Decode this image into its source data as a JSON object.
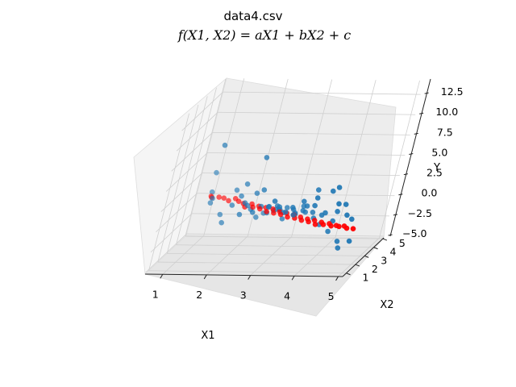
{
  "chart_data": {
    "type": "scatter",
    "projection": "3d",
    "title": "data4.csv",
    "subtitle": "f(X1, X2) = aX1 + bX2 + c",
    "xlabel": "X1",
    "ylabel": "X2",
    "zlabel": "Y",
    "xlim": [
      0.6,
      5.1
    ],
    "ylim": [
      0.6,
      5.1
    ],
    "zlim": [
      -5.2,
      14.2
    ],
    "xticks": [
      "1",
      "2",
      "3",
      "4",
      "5"
    ],
    "yticks": [
      "1",
      "2",
      "3",
      "4",
      "5"
    ],
    "zticks": [
      "−5.0",
      "−2.5",
      "0.0",
      "2.5",
      "5.0",
      "7.5",
      "10.0",
      "12.5"
    ],
    "grid": true,
    "series": [
      {
        "color": "#1f77b4",
        "points": [
          [
            1.0,
            4.6,
            3.1
          ],
          [
            1.0,
            4.7,
            0.6
          ],
          [
            1.1,
            4.2,
            -0.2
          ],
          [
            1.4,
            4.1,
            -1.5
          ],
          [
            1.5,
            4.0,
            -2.4
          ],
          [
            1.3,
            2.9,
            8.3
          ],
          [
            1.7,
            3.6,
            0.2
          ],
          [
            1.8,
            4.0,
            0.9
          ],
          [
            1.9,
            3.8,
            2.6
          ],
          [
            2.0,
            3.5,
            0.6
          ],
          [
            2.0,
            3.1,
            -0.4
          ],
          [
            2.1,
            3.3,
            0.5
          ],
          [
            2.2,
            3.6,
            1.7
          ],
          [
            2.3,
            3.0,
            0.0
          ],
          [
            2.4,
            3.4,
            0.3
          ],
          [
            2.5,
            3.8,
            -0.9
          ],
          [
            2.6,
            3.3,
            0.4
          ],
          [
            2.2,
            4.3,
            -2.0
          ],
          [
            2.3,
            4.6,
            -1.8
          ],
          [
            2.5,
            4.7,
            -1.6
          ],
          [
            2.6,
            4.4,
            -1.1
          ],
          [
            2.7,
            4.2,
            -0.9
          ],
          [
            2.8,
            3.7,
            -0.4
          ],
          [
            2.4,
            2.4,
            7.4
          ],
          [
            2.5,
            2.6,
            3.2
          ],
          [
            2.8,
            3.2,
            0.6
          ],
          [
            2.9,
            2.9,
            0.8
          ],
          [
            3.0,
            3.4,
            0.2
          ],
          [
            3.0,
            3.0,
            0.0
          ],
          [
            3.1,
            2.7,
            0.4
          ],
          [
            3.2,
            3.1,
            0.3
          ],
          [
            3.2,
            3.5,
            -0.7
          ],
          [
            3.3,
            2.8,
            0.2
          ],
          [
            3.4,
            3.2,
            0.6
          ],
          [
            3.5,
            2.6,
            0.7
          ],
          [
            3.5,
            3.0,
            0.1
          ],
          [
            3.6,
            2.4,
            1.5
          ],
          [
            3.7,
            2.8,
            0.3
          ],
          [
            3.8,
            2.5,
            -0.1
          ],
          [
            3.8,
            2.2,
            3.7
          ],
          [
            3.4,
            2.0,
            0.8
          ],
          [
            3.9,
            2.9,
            -1.3
          ],
          [
            4.0,
            2.3,
            0.5
          ],
          [
            4.1,
            2.1,
            1.0
          ],
          [
            4.2,
            2.5,
            -1.7
          ],
          [
            4.2,
            1.8,
            4.0
          ],
          [
            4.3,
            2.2,
            -0.1
          ],
          [
            4.4,
            1.9,
            1.4
          ],
          [
            4.5,
            2.3,
            -2.7
          ],
          [
            4.6,
            1.6,
            2.6
          ],
          [
            4.6,
            2.0,
            -3.2
          ],
          [
            4.7,
            1.5,
            1.4
          ],
          [
            4.8,
            1.7,
            0.7
          ],
          [
            4.9,
            1.5,
            -1.8
          ],
          [
            3.0,
            1.4,
            3.1
          ],
          [
            4.4,
            1.3,
            5.0
          ],
          [
            4.0,
            1.1,
            3.9
          ],
          [
            3.6,
            1.8,
            2.7
          ],
          [
            3.3,
            2.3,
            1.4
          ],
          [
            2.9,
            3.7,
            -1.5
          ],
          [
            2.1,
            3.9,
            -0.6
          ],
          [
            1.6,
            4.4,
            1.2
          ],
          [
            1.2,
            3.7,
            0.9
          ],
          [
            4.5,
            1.2,
            3.1
          ],
          [
            3.9,
            1.6,
            2.4
          ],
          [
            2.7,
            2.6,
            1.1
          ]
        ]
      },
      {
        "color": "#ff0000",
        "points": [
          [
            1.0,
            4.7,
            0.1
          ],
          [
            1.05,
            4.5,
            0.15
          ],
          [
            1.2,
            4.6,
            0.1
          ],
          [
            1.35,
            4.4,
            0.2
          ],
          [
            1.5,
            4.2,
            0.1
          ],
          [
            1.6,
            4.5,
            0.05
          ],
          [
            1.75,
            4.1,
            0.15
          ],
          [
            1.9,
            3.9,
            0.1
          ],
          [
            2.0,
            3.6,
            0.0
          ],
          [
            2.1,
            3.9,
            0.05
          ],
          [
            2.2,
            3.5,
            0.1
          ],
          [
            2.3,
            3.7,
            0.0
          ],
          [
            2.4,
            3.3,
            0.1
          ],
          [
            2.5,
            3.5,
            0.05
          ],
          [
            2.6,
            3.1,
            0.0
          ],
          [
            2.7,
            3.3,
            0.1
          ],
          [
            2.8,
            2.9,
            0.05
          ],
          [
            2.9,
            3.1,
            0.0
          ],
          [
            3.0,
            2.7,
            0.1
          ],
          [
            3.1,
            2.9,
            0.05
          ],
          [
            3.2,
            2.5,
            0.0
          ],
          [
            3.3,
            2.7,
            0.05
          ],
          [
            3.4,
            2.3,
            0.1
          ],
          [
            3.5,
            2.5,
            0.0
          ],
          [
            3.6,
            2.1,
            0.05
          ],
          [
            3.7,
            2.3,
            0.0
          ],
          [
            3.8,
            1.9,
            0.1
          ],
          [
            3.9,
            2.1,
            0.05
          ],
          [
            4.0,
            1.7,
            0.0
          ],
          [
            4.1,
            1.9,
            0.05
          ],
          [
            4.2,
            1.6,
            0.1
          ],
          [
            4.3,
            1.8,
            0.0
          ],
          [
            4.4,
            1.5,
            0.05
          ],
          [
            4.5,
            1.6,
            0.0
          ],
          [
            4.6,
            1.4,
            0.1
          ],
          [
            4.7,
            1.5,
            0.05
          ],
          [
            4.8,
            1.3,
            0.0
          ],
          [
            4.95,
            1.3,
            -0.05
          ]
        ]
      }
    ]
  }
}
